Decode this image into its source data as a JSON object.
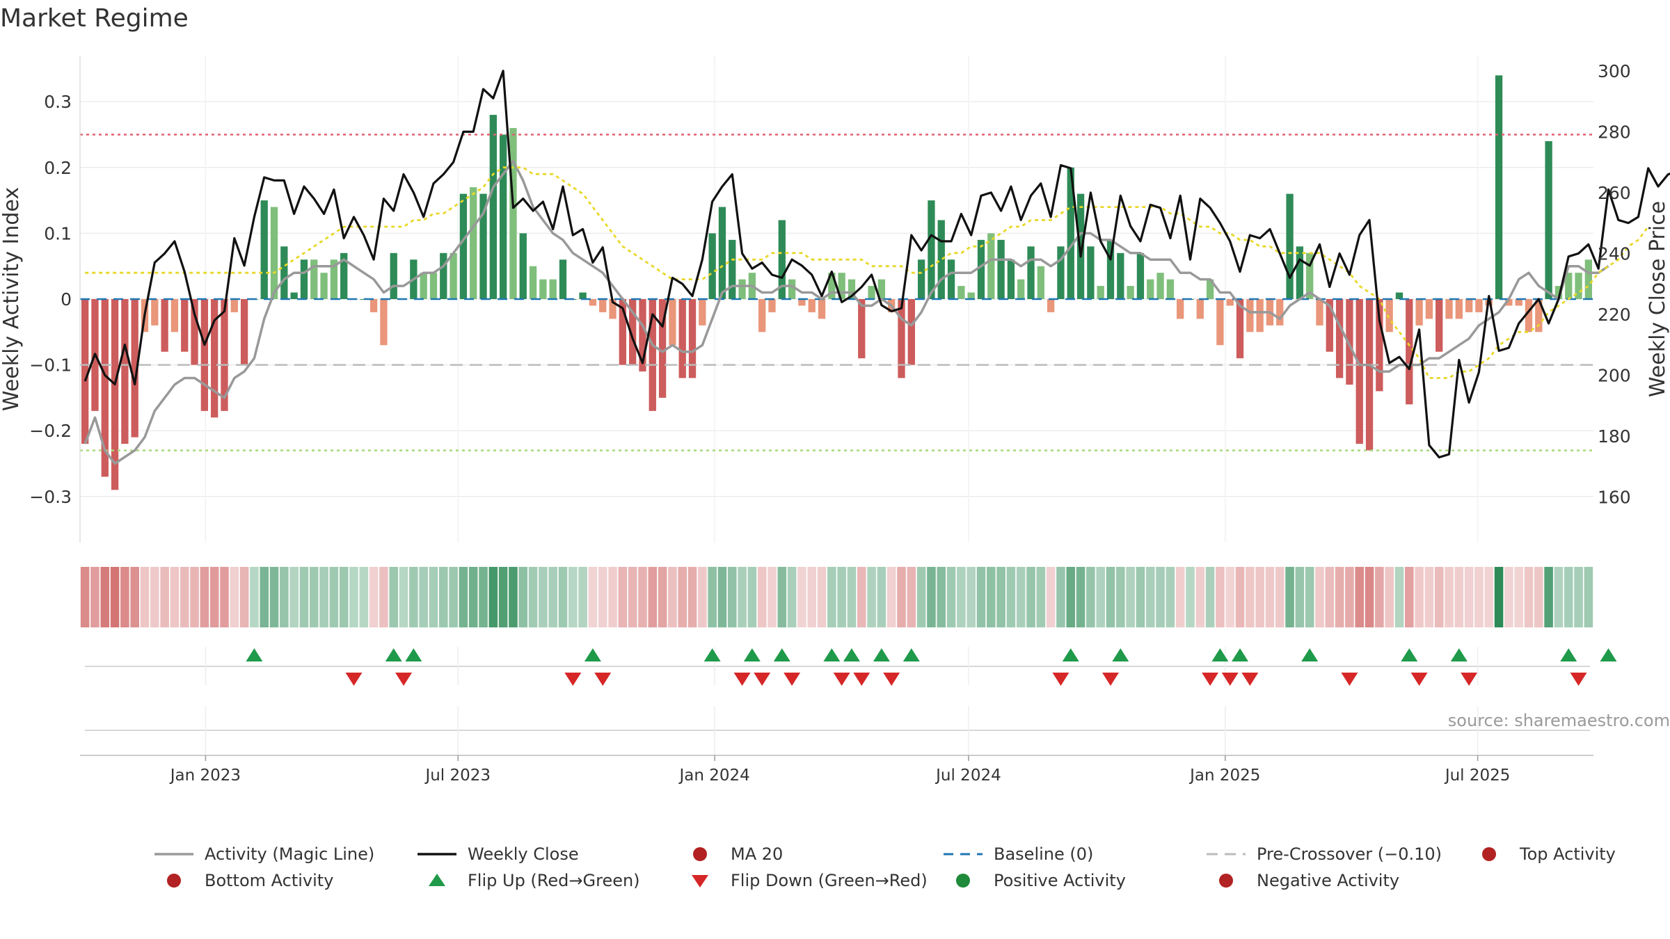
{
  "title": "Market Regime",
  "source": "source: sharemaestro.com",
  "colors": {
    "strong_green": "#2e8b57",
    "light_green": "#7fbf7b",
    "strong_red": "#cd5c5c",
    "light_red": "#e9967a",
    "close": "#111111",
    "magic": "#999999",
    "ma20": "#e8d829",
    "baseline": "#1f77b4",
    "precross": "#bbbbbb",
    "top": "#e06070",
    "bottom": "#a8d87a",
    "flip_up": "#1f9a4a",
    "flip_down": "#d62728"
  },
  "legend": [
    {
      "key": "magic",
      "label": "Activity (Magic Line)",
      "style": "solid-gray"
    },
    {
      "key": "close",
      "label": "Weekly Close",
      "style": "solid-black"
    },
    {
      "key": "ma20",
      "label": "MA 20",
      "style": "dotted-yellow"
    },
    {
      "key": "baseline",
      "label": "Baseline (0)",
      "style": "dashed-blue"
    },
    {
      "key": "precross",
      "label": "Pre-Crossover (−0.10)",
      "style": "dashed-gray"
    },
    {
      "key": "top",
      "label": "Top Activity",
      "style": "dotted-red"
    },
    {
      "key": "bottom",
      "label": "Bottom Activity",
      "style": "dotted-green"
    },
    {
      "key": "flip_up",
      "label": "Flip Up (Red→Green)",
      "style": "triangle-up"
    },
    {
      "key": "flip_down",
      "label": "Flip Down (Green→Red)",
      "style": "triangle-down"
    },
    {
      "key": "pos",
      "label": "Positive Activity",
      "style": "dot-green"
    },
    {
      "key": "neg",
      "label": "Negative Activity",
      "style": "dot-red"
    }
  ],
  "chart_data": {
    "type": "bar",
    "ylabel": "Weekly Activity Index",
    "y2label": "Weekly Close Price",
    "ylim": [
      -0.37,
      0.37
    ],
    "y2lim": [
      145,
      305
    ],
    "yticks": [
      "−0.3",
      "−0.2",
      "−0.1",
      "0",
      "0.1",
      "0.2",
      "0.3"
    ],
    "ytick_values": [
      -0.3,
      -0.2,
      -0.1,
      0,
      0.1,
      0.2,
      0.3
    ],
    "y2ticks": [
      "160",
      "180",
      "200",
      "220",
      "240",
      "260",
      "280",
      "300"
    ],
    "y2tick_values": [
      160,
      180,
      200,
      220,
      240,
      260,
      280,
      300
    ],
    "x_range": [
      "2022-10-03",
      "2025-09-22"
    ],
    "x_ticks": [
      {
        "label": "Jan 2023",
        "date": "2023-01-01"
      },
      {
        "label": "Jul 2023",
        "date": "2023-07-01"
      },
      {
        "label": "Jan 2024",
        "date": "2024-01-01"
      },
      {
        "label": "Jul 2024",
        "date": "2024-07-01"
      },
      {
        "label": "Jan 2025",
        "date": "2025-01-01"
      },
      {
        "label": "Jul 2025",
        "date": "2025-07-01"
      }
    ],
    "reference_lines": {
      "baseline": 0,
      "pre_crossover": -0.1,
      "top": 0.25,
      "bottom": -0.23
    },
    "series": [
      {
        "name": "Weekly Activity Index",
        "axis": "left",
        "values": [
          -0.22,
          -0.17,
          -0.27,
          -0.29,
          -0.22,
          -0.21,
          -0.05,
          -0.04,
          -0.08,
          -0.05,
          -0.08,
          -0.1,
          -0.17,
          -0.18,
          -0.17,
          -0.02,
          -0.1,
          0.0,
          0.15,
          0.14,
          0.08,
          0.01,
          0.06,
          0.06,
          0.04,
          0.06,
          0.07,
          0.0,
          0.0,
          -0.02,
          -0.07,
          0.07,
          0.0,
          0.06,
          0.04,
          0.04,
          0.07,
          0.07,
          0.16,
          0.17,
          0.16,
          0.28,
          0.25,
          0.26,
          0.1,
          0.05,
          0.03,
          0.03,
          0.06,
          0.0,
          0.01,
          -0.01,
          -0.02,
          -0.03,
          -0.1,
          -0.1,
          -0.11,
          -0.17,
          -0.15,
          -0.07,
          -0.12,
          -0.12,
          -0.04,
          0.1,
          0.14,
          0.09,
          0.03,
          0.04,
          -0.05,
          -0.02,
          0.12,
          0.03,
          -0.01,
          -0.02,
          -0.03,
          0.04,
          0.04,
          0.03,
          -0.09,
          0.02,
          0.03,
          -0.02,
          -0.12,
          -0.1,
          0.06,
          0.15,
          0.12,
          0.06,
          0.02,
          0.01,
          0.09,
          0.1,
          0.09,
          0.06,
          0.03,
          0.08,
          0.05,
          -0.02,
          0.08,
          0.2,
          0.16,
          0.08,
          0.02,
          0.09,
          0.07,
          0.02,
          0.07,
          0.03,
          0.04,
          0.03,
          -0.03,
          0.0,
          -0.03,
          0.03,
          -0.07,
          -0.01,
          -0.09,
          -0.05,
          -0.05,
          -0.04,
          -0.04,
          0.16,
          0.08,
          0.07,
          -0.04,
          -0.08,
          -0.12,
          -0.13,
          -0.22,
          -0.23,
          -0.14,
          -0.05,
          0.01,
          -0.16,
          -0.04,
          -0.03,
          -0.08,
          -0.03,
          -0.03,
          -0.02,
          -0.02,
          -0.01,
          0.34,
          -0.01,
          -0.01,
          -0.05,
          -0.05,
          0.24,
          0.02,
          0.04,
          0.04,
          0.06
        ]
      },
      {
        "name": "Weekly Close",
        "axis": "right",
        "values": [
          198,
          207,
          200,
          197,
          210,
          197,
          220,
          237,
          240,
          244,
          234,
          220,
          210,
          218,
          221,
          245,
          236,
          252,
          265,
          264,
          264,
          253,
          262,
          258,
          253,
          261,
          245,
          252,
          246,
          238,
          258,
          254,
          266,
          260,
          252,
          263,
          266,
          270,
          280,
          280,
          294,
          291,
          300,
          255,
          258,
          254,
          257,
          248,
          262,
          246,
          248,
          237,
          242,
          224,
          222,
          212,
          204,
          220,
          216,
          232,
          230,
          226,
          238,
          257,
          262,
          266,
          240,
          235,
          237,
          233,
          232,
          238,
          236,
          233,
          226,
          234,
          224,
          226,
          229,
          233,
          223,
          221,
          222,
          246,
          241,
          246,
          244,
          244,
          253,
          246,
          259,
          260,
          254,
          262,
          251,
          259,
          263,
          252,
          269,
          268,
          239,
          260,
          244,
          238,
          259,
          249,
          244,
          256,
          255,
          245,
          259,
          238,
          258,
          255,
          250,
          244,
          234,
          246,
          245,
          248,
          240,
          232,
          238,
          236,
          243,
          229,
          240,
          233,
          246,
          251,
          218,
          204,
          206,
          202,
          215,
          177,
          173,
          174,
          205,
          191,
          201,
          226,
          208,
          209,
          217,
          221,
          225,
          217,
          225,
          239,
          240,
          243,
          235,
          261,
          251,
          250,
          252,
          268,
          262,
          266,
          267,
          266
        ]
      },
      {
        "name": "Activity (Magic Line)",
        "axis": "left",
        "values": [
          -0.22,
          -0.18,
          -0.23,
          -0.25,
          -0.24,
          -0.23,
          -0.21,
          -0.17,
          -0.15,
          -0.13,
          -0.12,
          -0.12,
          -0.13,
          -0.14,
          -0.15,
          -0.12,
          -0.11,
          -0.09,
          -0.03,
          0.01,
          0.03,
          0.04,
          0.04,
          0.05,
          0.05,
          0.05,
          0.06,
          0.05,
          0.04,
          0.03,
          0.01,
          0.02,
          0.02,
          0.03,
          0.04,
          0.04,
          0.05,
          0.07,
          0.09,
          0.11,
          0.13,
          0.17,
          0.19,
          0.21,
          0.18,
          0.14,
          0.12,
          0.1,
          0.09,
          0.07,
          0.06,
          0.05,
          0.04,
          0.02,
          0.0,
          -0.02,
          -0.04,
          -0.07,
          -0.08,
          -0.07,
          -0.08,
          -0.08,
          -0.07,
          -0.03,
          0.01,
          0.02,
          0.02,
          0.02,
          0.01,
          0.01,
          0.02,
          0.02,
          0.01,
          0.01,
          0.0,
          0.01,
          0.01,
          0.01,
          -0.01,
          -0.01,
          0.0,
          -0.01,
          -0.03,
          -0.04,
          -0.02,
          0.01,
          0.03,
          0.04,
          0.04,
          0.04,
          0.05,
          0.06,
          0.06,
          0.06,
          0.05,
          0.06,
          0.06,
          0.05,
          0.06,
          0.08,
          0.1,
          0.1,
          0.09,
          0.09,
          0.08,
          0.07,
          0.07,
          0.06,
          0.06,
          0.06,
          0.04,
          0.04,
          0.03,
          0.03,
          0.01,
          0.01,
          -0.01,
          -0.02,
          -0.02,
          -0.02,
          -0.03,
          -0.01,
          0.0,
          0.01,
          0.0,
          -0.01,
          -0.04,
          -0.07,
          -0.1,
          -0.1,
          -0.11,
          -0.11,
          -0.1,
          -0.1,
          -0.1,
          -0.09,
          -0.09,
          -0.08,
          -0.07,
          -0.06,
          -0.04,
          -0.03,
          -0.02,
          0.0,
          0.03,
          0.04,
          0.02,
          0.01,
          0.0,
          0.05,
          0.05,
          0.04,
          0.04,
          0.05
        ]
      },
      {
        "name": "MA 20",
        "axis": "left",
        "values": [
          0.04,
          0.04,
          0.04,
          0.04,
          0.04,
          0.04,
          0.04,
          0.04,
          0.04,
          0.04,
          0.04,
          0.04,
          0.04,
          0.04,
          0.04,
          0.04,
          0.04,
          0.04,
          0.04,
          0.04,
          0.05,
          0.06,
          0.07,
          0.08,
          0.09,
          0.1,
          0.11,
          0.11,
          0.11,
          0.11,
          0.11,
          0.11,
          0.11,
          0.12,
          0.12,
          0.13,
          0.13,
          0.14,
          0.15,
          0.16,
          0.17,
          0.19,
          0.2,
          0.2,
          0.2,
          0.19,
          0.19,
          0.19,
          0.18,
          0.17,
          0.16,
          0.14,
          0.12,
          0.1,
          0.08,
          0.07,
          0.06,
          0.05,
          0.04,
          0.03,
          0.03,
          0.03,
          0.03,
          0.04,
          0.05,
          0.06,
          0.06,
          0.06,
          0.06,
          0.07,
          0.07,
          0.07,
          0.07,
          0.06,
          0.06,
          0.06,
          0.06,
          0.06,
          0.06,
          0.05,
          0.05,
          0.05,
          0.05,
          0.04,
          0.04,
          0.05,
          0.06,
          0.07,
          0.07,
          0.08,
          0.08,
          0.09,
          0.1,
          0.11,
          0.11,
          0.12,
          0.12,
          0.12,
          0.13,
          0.14,
          0.14,
          0.14,
          0.14,
          0.14,
          0.14,
          0.14,
          0.14,
          0.14,
          0.14,
          0.13,
          0.13,
          0.12,
          0.11,
          0.11,
          0.1,
          0.1,
          0.09,
          0.09,
          0.08,
          0.08,
          0.07,
          0.07,
          0.07,
          0.07,
          0.07,
          0.06,
          0.05,
          0.04,
          0.02,
          0.01,
          0.0,
          -0.03,
          -0.05,
          -0.07,
          -0.09,
          -0.12,
          -0.12,
          -0.12,
          -0.11,
          -0.11,
          -0.1,
          -0.09,
          -0.07,
          -0.06,
          -0.05,
          -0.05,
          -0.04,
          -0.02,
          -0.01,
          0.0,
          0.01,
          0.02,
          0.04,
          0.05,
          0.06,
          0.08,
          0.09,
          0.11
        ]
      }
    ],
    "regime_strip": "weekly activity (green = positive, red = negative)",
    "flip_up_weeks": [
      17,
      31,
      33,
      51,
      63,
      67,
      70,
      75,
      77,
      80,
      83,
      99,
      104,
      114,
      116,
      123,
      133,
      138,
      149,
      153
    ],
    "flip_down_weeks": [
      27,
      32,
      49,
      52,
      66,
      68,
      71,
      76,
      78,
      81,
      98,
      103,
      113,
      115,
      117,
      127,
      134,
      139,
      150
    ]
  }
}
